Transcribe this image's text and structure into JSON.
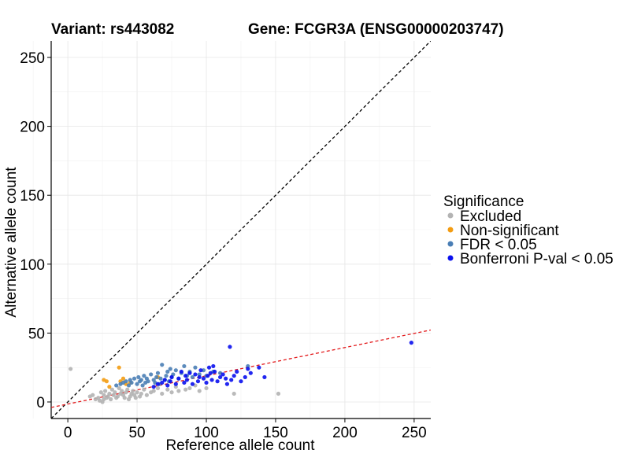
{
  "chart_data": {
    "type": "scatter",
    "title_left": "Variant: rs443082",
    "title_right": "Gene: FCGR3A (ENSG00000203747)",
    "xlabel": "Reference allele count",
    "ylabel": "Alternative allele count",
    "xlim": [
      -12,
      262
    ],
    "ylim": [
      -12,
      262
    ],
    "xticks": [
      0,
      50,
      100,
      150,
      200,
      250
    ],
    "yticks": [
      0,
      50,
      100,
      150,
      200,
      250
    ],
    "grid": true,
    "legend": {
      "title": "Significance",
      "position": "right",
      "entries": [
        {
          "label": "Excluded",
          "color": "#b3b3b3"
        },
        {
          "label": "Non-significant",
          "color": "#f39c12"
        },
        {
          "label": "FDR < 0.05",
          "color": "#4a7eb5"
        },
        {
          "label": "Bonferroni P-val < 0.05",
          "color": "#0a10ee"
        }
      ]
    },
    "reference_lines": [
      {
        "name": "identity",
        "slope": 1,
        "intercept": 0,
        "color": "#000000",
        "style": "dashed"
      },
      {
        "name": "fit",
        "slope": 0.205,
        "intercept": -1.5,
        "color": "#e31a1c",
        "style": "dashed"
      }
    ],
    "series": [
      {
        "name": "Excluded",
        "color": "#b3b3b3",
        "x": [
          2,
          16,
          18,
          20,
          22,
          23,
          24,
          25,
          26,
          26,
          27,
          28,
          29,
          30,
          31,
          32,
          33,
          34,
          35,
          36,
          37,
          38,
          39,
          40,
          41,
          42,
          43,
          44,
          45,
          46,
          47,
          48,
          49,
          50,
          52,
          53,
          55,
          57,
          60,
          62,
          65,
          68,
          72,
          75,
          78,
          80,
          85,
          88,
          92,
          95,
          100,
          120,
          152
        ],
        "y": [
          24,
          4,
          5,
          2,
          3,
          1,
          7,
          0,
          2,
          5,
          8,
          3,
          4,
          6,
          2,
          9,
          5,
          7,
          3,
          4,
          10,
          6,
          8,
          5,
          3,
          7,
          9,
          2,
          4,
          6,
          8,
          5,
          3,
          7,
          4,
          6,
          9,
          5,
          7,
          8,
          10,
          6,
          9,
          7,
          11,
          8,
          9,
          10,
          12,
          8,
          10,
          6,
          6
        ]
      },
      {
        "name": "Non-significant",
        "color": "#f39c12",
        "x": [
          26,
          28,
          30,
          37,
          38,
          40,
          42,
          45,
          65
        ],
        "y": [
          16,
          15,
          11,
          25,
          15,
          17,
          13,
          14,
          18
        ]
      },
      {
        "name": "FDR < 0.05",
        "color": "#4a7eb5",
        "x": [
          35,
          38,
          40,
          42,
          44,
          45,
          46,
          48,
          50,
          51,
          52,
          53,
          54,
          55,
          56,
          57,
          58,
          60,
          62,
          63,
          64,
          65,
          66,
          67,
          68,
          70,
          71,
          72,
          73,
          74,
          75,
          76,
          78,
          80,
          82,
          84,
          86,
          88,
          90,
          92,
          95,
          98,
          100,
          105,
          110,
          130
        ],
        "y": [
          12,
          13,
          14,
          15,
          12,
          16,
          14,
          17,
          13,
          18,
          15,
          16,
          12,
          19,
          14,
          17,
          15,
          20,
          16,
          14,
          18,
          21,
          13,
          17,
          27,
          16,
          19,
          22,
          15,
          24,
          18,
          20,
          23,
          17,
          21,
          26,
          19,
          22,
          18,
          25,
          20,
          23,
          19,
          22,
          21,
          26
        ]
      },
      {
        "name": "Bonferroni P-val < 0.05",
        "color": "#0a10ee",
        "x": [
          62,
          65,
          68,
          70,
          72,
          74,
          75,
          78,
          80,
          82,
          84,
          85,
          86,
          88,
          90,
          92,
          94,
          95,
          96,
          98,
          100,
          101,
          102,
          103,
          104,
          105,
          106,
          108,
          110,
          112,
          114,
          115,
          117,
          118,
          120,
          122,
          125,
          128,
          130,
          132,
          138,
          142,
          248
        ],
        "y": [
          11,
          13,
          14,
          16,
          12,
          15,
          18,
          13,
          17,
          22,
          14,
          19,
          16,
          21,
          13,
          20,
          15,
          18,
          23,
          17,
          14,
          19,
          25,
          21,
          16,
          26,
          22,
          15,
          18,
          20,
          17,
          13,
          40,
          16,
          19,
          22,
          15,
          18,
          24,
          21,
          25,
          18,
          43
        ]
      }
    ]
  }
}
